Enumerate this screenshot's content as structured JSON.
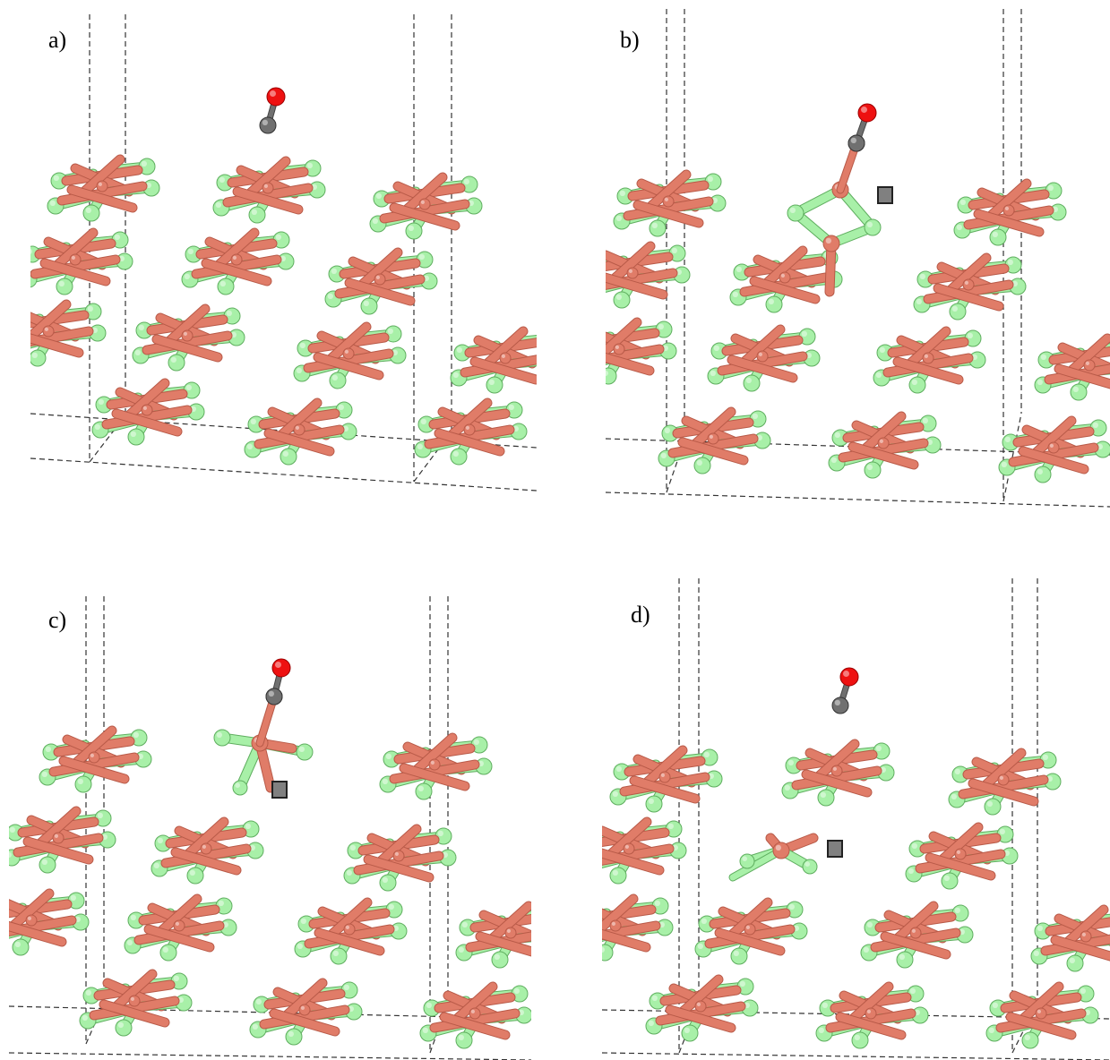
{
  "panels": [
    {
      "id": "a",
      "label": "a)",
      "scene": "co-above-surface"
    },
    {
      "id": "b",
      "label": "b)",
      "scene": "co-adsorbed-vacancy"
    },
    {
      "id": "c",
      "label": "c)",
      "scene": "co-adsorbed-cluster"
    },
    {
      "id": "d",
      "label": "d)",
      "scene": "co-desorbed-vacancy"
    }
  ],
  "legend_note": "",
  "colors": {
    "metal": "#e07c68",
    "metal_dark": "#b85a48",
    "ligand": "#a8f0a8",
    "ligand_dark": "#5fae5f",
    "carbon": "#707070",
    "oxygen": "#ee1111",
    "vacancy": "#808080",
    "cell_line": "#333333"
  }
}
